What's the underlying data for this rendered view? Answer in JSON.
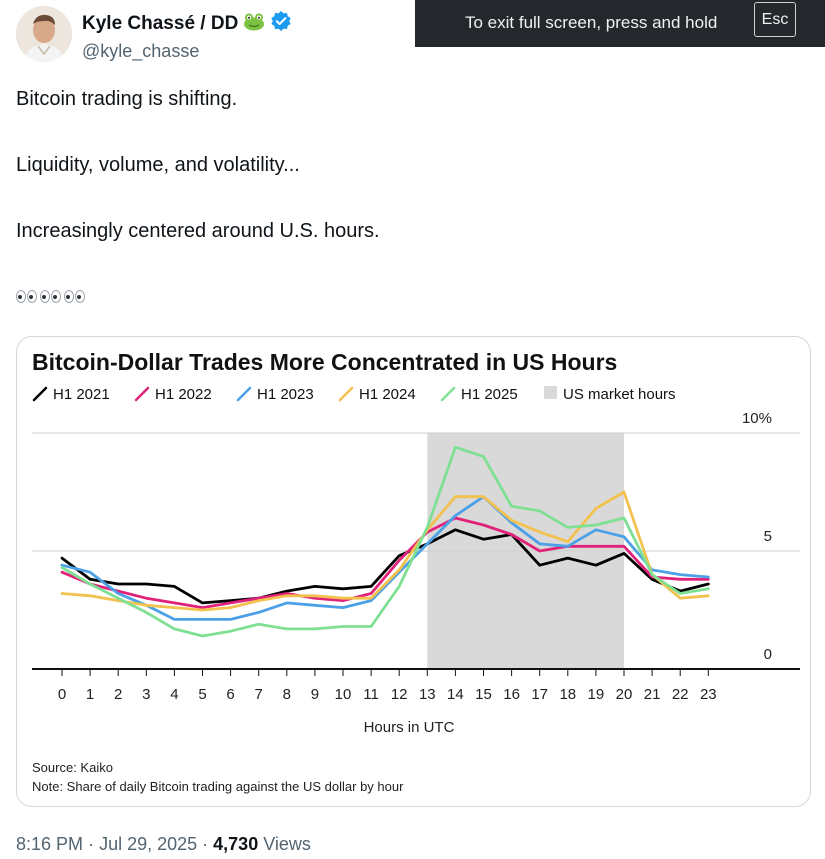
{
  "author": {
    "display_name": "Kyle Chassé / DD",
    "handle": "@kyle_chasse",
    "verified_badge_color": "#1d9bf0",
    "name_emoji": "frog-icon"
  },
  "fullscreen_banner": {
    "text": "To exit full screen, press and hold",
    "key": "Esc"
  },
  "tweet": {
    "lines": [
      "Bitcoin trading is shifting.",
      "Liquidity, volume, and volatility...",
      "Increasingly centered around U.S. hours."
    ],
    "emoji_row": "eyes-icon x3"
  },
  "footer": {
    "time": "8:16 PM",
    "date": "Jul 29, 2025",
    "views_count": "4,730",
    "views_label": "Views"
  },
  "chart_data": {
    "type": "line",
    "title": "Bitcoin-Dollar Trades More Concentrated in US Hours",
    "xlabel": "Hours in UTC",
    "ylabel": "",
    "x": [
      0,
      1,
      2,
      3,
      4,
      5,
      6,
      7,
      8,
      9,
      10,
      11,
      12,
      13,
      14,
      15,
      16,
      17,
      18,
      19,
      20,
      21,
      22,
      23
    ],
    "ylim": [
      0,
      10
    ],
    "yticks": [
      {
        "value": 10,
        "label": "10%"
      },
      {
        "value": 5,
        "label": "5"
      },
      {
        "value": 0,
        "label": "0"
      }
    ],
    "shaded_region": {
      "label": "US market hours",
      "from": 13,
      "to": 20,
      "color": "#d9d9d9"
    },
    "series": [
      {
        "name": "H1 2021",
        "color": "#000000",
        "values": [
          4.7,
          3.8,
          3.6,
          3.6,
          3.5,
          2.8,
          2.9,
          3.0,
          3.3,
          3.5,
          3.4,
          3.5,
          4.8,
          5.3,
          5.9,
          5.5,
          5.7,
          4.4,
          4.7,
          4.4,
          4.9,
          3.8,
          3.3,
          3.6
        ]
      },
      {
        "name": "H1 2022",
        "color": "#e0227a",
        "values": [
          4.1,
          3.6,
          3.3,
          3.0,
          2.8,
          2.6,
          2.8,
          3.0,
          3.2,
          3.0,
          2.9,
          3.2,
          4.6,
          5.8,
          6.4,
          6.1,
          5.7,
          5.0,
          5.2,
          5.2,
          5.2,
          3.9,
          3.8,
          3.8
        ]
      },
      {
        "name": "H1 2023",
        "color": "#4ca0e6",
        "values": [
          4.4,
          4.1,
          3.2,
          2.7,
          2.1,
          2.1,
          2.1,
          2.4,
          2.8,
          2.7,
          2.6,
          2.9,
          4.1,
          5.3,
          6.5,
          7.3,
          6.2,
          5.3,
          5.2,
          5.9,
          5.6,
          4.2,
          4.0,
          3.9
        ]
      },
      {
        "name": "H1 2024",
        "color": "#f2c14e",
        "values": [
          3.2,
          3.1,
          2.9,
          2.7,
          2.6,
          2.5,
          2.6,
          2.9,
          3.1,
          3.1,
          3.0,
          3.0,
          4.2,
          5.9,
          7.3,
          7.3,
          6.3,
          5.8,
          5.4,
          6.8,
          7.5,
          4.0,
          3.0,
          3.1
        ]
      },
      {
        "name": "H1 2025",
        "color": "#7fe093",
        "values": [
          4.3,
          3.6,
          3.0,
          2.4,
          1.7,
          1.4,
          1.6,
          1.9,
          1.7,
          1.7,
          1.8,
          1.8,
          3.5,
          6.0,
          9.4,
          9.0,
          6.9,
          6.7,
          6.0,
          6.1,
          6.4,
          4.0,
          3.2,
          3.4
        ]
      }
    ],
    "legend": [
      {
        "label": "H1 2021",
        "color": "#000000",
        "kind": "line"
      },
      {
        "label": "H1 2022",
        "color": "#e0227a",
        "kind": "line"
      },
      {
        "label": "H1 2023",
        "color": "#4ca0e6",
        "kind": "line"
      },
      {
        "label": "H1 2024",
        "color": "#f2c14e",
        "kind": "line"
      },
      {
        "label": "H1 2025",
        "color": "#7fe093",
        "kind": "line"
      },
      {
        "label": "US market hours",
        "color": "#d9d9d9",
        "kind": "box"
      }
    ],
    "source": "Source: Kaiko",
    "note": "Note: Share of daily Bitcoin trading against the US dollar by hour",
    "legend_placement": "top",
    "grid": "horizontal"
  }
}
